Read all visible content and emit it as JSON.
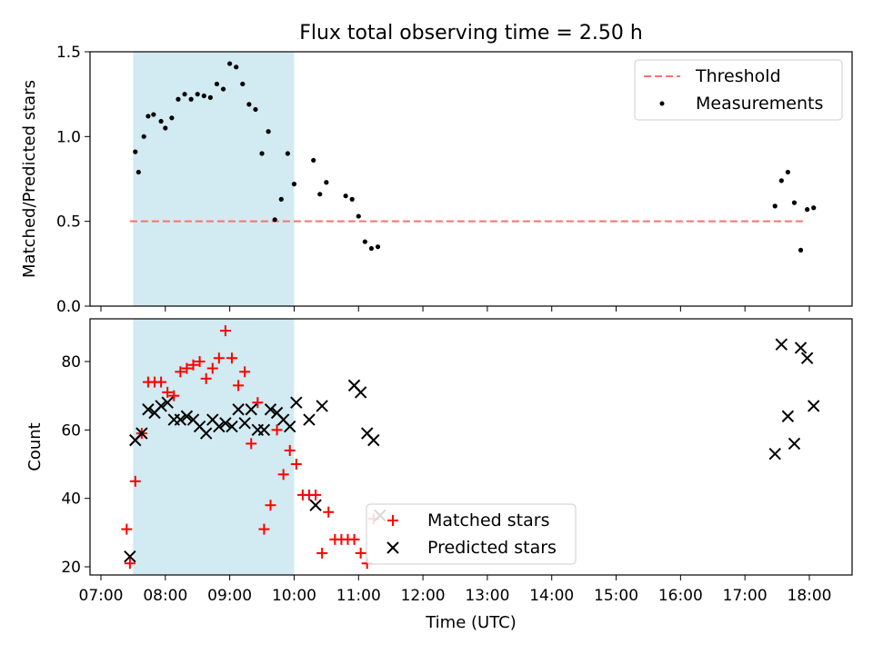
{
  "title": "Flux total observing time = 2.50 h",
  "colors": {
    "shade": "#add8e6",
    "threshold": "#ff6f6f",
    "measurement": "#000000",
    "matched": "#ff0000",
    "predicted": "#000000"
  },
  "chart_data": [
    {
      "type": "scatter",
      "ylabel": "Matched/Predicted stars",
      "ylim": [
        0,
        1.5
      ],
      "yticks": [
        "0.0",
        "0.5",
        "1.0",
        "1.5"
      ],
      "legend_position": "top-right",
      "shaded_interval": [
        "07:30",
        "10:00"
      ],
      "threshold": {
        "name": "Threshold",
        "value": 0.5,
        "x": [
          "07:27",
          "17:55"
        ]
      },
      "series": [
        {
          "name": "Measurements",
          "x": [
            "07:32",
            "07:35",
            "07:40",
            "07:44",
            "07:49",
            "07:56",
            "08:00",
            "08:06",
            "08:12",
            "08:18",
            "08:24",
            "08:30",
            "08:36",
            "08:42",
            "08:48",
            "08:54",
            "09:00",
            "09:06",
            "09:12",
            "09:18",
            "09:24",
            "09:30",
            "09:36",
            "09:42",
            "09:48",
            "09:54",
            "10:00",
            "10:18",
            "10:24",
            "10:30",
            "10:48",
            "10:54",
            "11:00",
            "11:06",
            "11:12",
            "11:18",
            "17:28",
            "17:34",
            "17:40",
            "17:46",
            "17:52",
            "17:58",
            "18:04"
          ],
          "y": [
            0.91,
            0.79,
            1.0,
            1.12,
            1.13,
            1.09,
            1.05,
            1.11,
            1.22,
            1.25,
            1.22,
            1.25,
            1.24,
            1.23,
            1.31,
            1.28,
            1.43,
            1.41,
            1.31,
            1.19,
            1.16,
            0.9,
            1.03,
            0.51,
            0.63,
            0.9,
            0.72,
            0.86,
            0.66,
            0.73,
            0.65,
            0.63,
            0.53,
            0.38,
            0.34,
            0.35,
            0.59,
            0.74,
            0.79,
            0.61,
            0.33,
            0.57,
            0.58
          ]
        }
      ]
    },
    {
      "type": "scatter",
      "xlabel": "Time (UTC)",
      "ylabel": "Count",
      "ylim": [
        18,
        92
      ],
      "yticks": [
        "20",
        "40",
        "60",
        "80"
      ],
      "xticks": [
        "07:00",
        "08:00",
        "09:00",
        "10:00",
        "11:00",
        "12:00",
        "13:00",
        "14:00",
        "15:00",
        "16:00",
        "17:00",
        "18:00"
      ],
      "legend_position": "bottom-center",
      "shaded_interval": [
        "07:30",
        "10:00"
      ],
      "series": [
        {
          "name": "Matched stars",
          "marker": "+",
          "x": [
            "07:24",
            "07:27",
            "07:32",
            "07:38",
            "07:44",
            "07:50",
            "07:56",
            "08:02",
            "08:08",
            "08:14",
            "08:20",
            "08:26",
            "08:32",
            "08:38",
            "08:44",
            "08:50",
            "08:56",
            "09:02",
            "09:08",
            "09:14",
            "09:20",
            "09:26",
            "09:32",
            "09:38",
            "09:44",
            "09:50",
            "09:56",
            "10:02",
            "10:08",
            "10:14",
            "10:20",
            "10:26",
            "10:32",
            "10:38",
            "10:44",
            "10:50",
            "10:56",
            "11:02",
            "11:08",
            "11:14"
          ],
          "y": [
            31,
            21,
            45,
            59,
            74,
            74,
            74,
            71,
            70,
            77,
            78,
            79,
            80,
            75,
            78,
            81,
            89,
            81,
            73,
            77,
            56,
            68,
            31,
            38,
            60,
            47,
            54,
            50,
            41,
            41,
            41,
            24,
            36,
            28,
            28,
            28,
            28,
            24,
            21,
            34
          ]
        },
        {
          "name": "Predicted stars",
          "marker": "x",
          "x": [
            "07:27",
            "07:32",
            "07:38",
            "07:44",
            "07:50",
            "07:56",
            "08:02",
            "08:08",
            "08:14",
            "08:20",
            "08:26",
            "08:32",
            "08:38",
            "08:44",
            "08:50",
            "08:56",
            "09:02",
            "09:08",
            "09:14",
            "09:20",
            "09:26",
            "09:32",
            "09:38",
            "09:44",
            "09:50",
            "09:56",
            "10:02",
            "10:14",
            "10:20",
            "10:26",
            "10:56",
            "11:02",
            "11:08",
            "11:14",
            "11:20",
            "17:28",
            "17:34",
            "17:40",
            "17:46",
            "17:52",
            "17:58",
            "18:04"
          ],
          "y": [
            23,
            57,
            59,
            66,
            65,
            67,
            68,
            63,
            63,
            64,
            63,
            61,
            59,
            63,
            61,
            62,
            61,
            66,
            62,
            66,
            60,
            60,
            66,
            65,
            63,
            61,
            68,
            63,
            38,
            67,
            73,
            71,
            59,
            57,
            35,
            53,
            85,
            64,
            56,
            84,
            81,
            67
          ]
        }
      ]
    }
  ]
}
